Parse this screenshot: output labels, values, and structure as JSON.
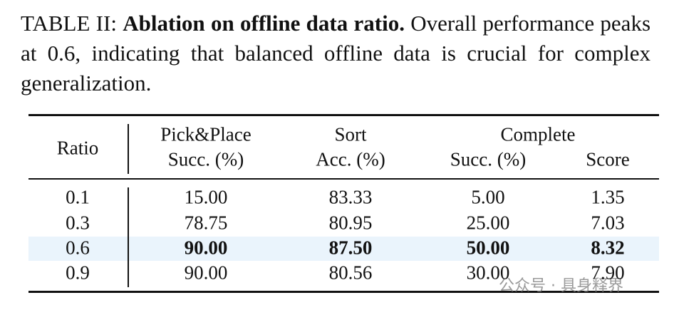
{
  "caption": {
    "label": "TABLE II:",
    "title": "Ablation on offline data ratio.",
    "text": "Overall performance peaks at 0.6, indicating that balanced offline data is crucial for complex generalization."
  },
  "table": {
    "header": {
      "ratio": "Ratio",
      "pick_place": "Pick&Place",
      "sort": "Sort",
      "complete": "Complete",
      "sub": [
        "Succ. (%)",
        "Acc. (%)",
        "Succ. (%)",
        "Score"
      ]
    },
    "rows": [
      [
        "0.1",
        "15.00",
        "83.33",
        "5.00",
        "1.35"
      ],
      [
        "0.3",
        "78.75",
        "80.95",
        "25.00",
        "7.03"
      ],
      [
        "0.6",
        "90.00",
        "87.50",
        "50.00",
        "8.32"
      ],
      [
        "0.9",
        "90.00",
        "80.56",
        "30.00",
        "7.90"
      ]
    ],
    "highlight_row": 2
  },
  "watermark": "公众号 · 具身释界"
}
